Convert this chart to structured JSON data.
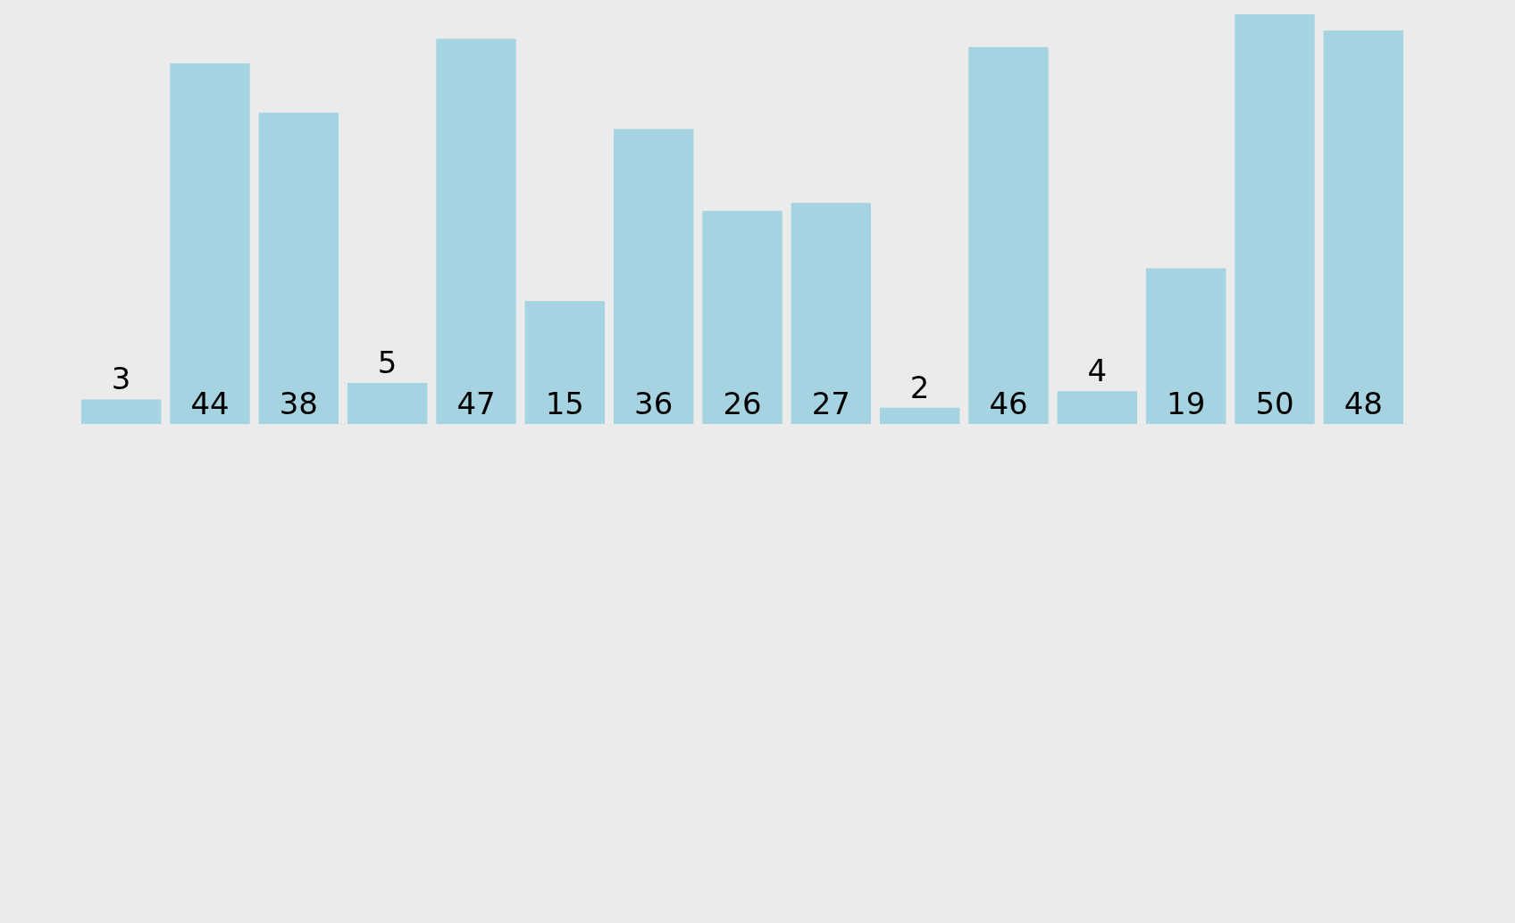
{
  "chart_data": {
    "type": "bar",
    "categories": [
      null,
      null,
      null,
      null,
      null,
      null,
      null,
      null,
      null,
      null,
      null,
      null,
      null,
      null,
      null
    ],
    "values": [
      3,
      44,
      38,
      5,
      47,
      15,
      36,
      26,
      27,
      2,
      46,
      4,
      19,
      50,
      48
    ],
    "color": "#a5d3e1",
    "data_labels": true
  }
}
